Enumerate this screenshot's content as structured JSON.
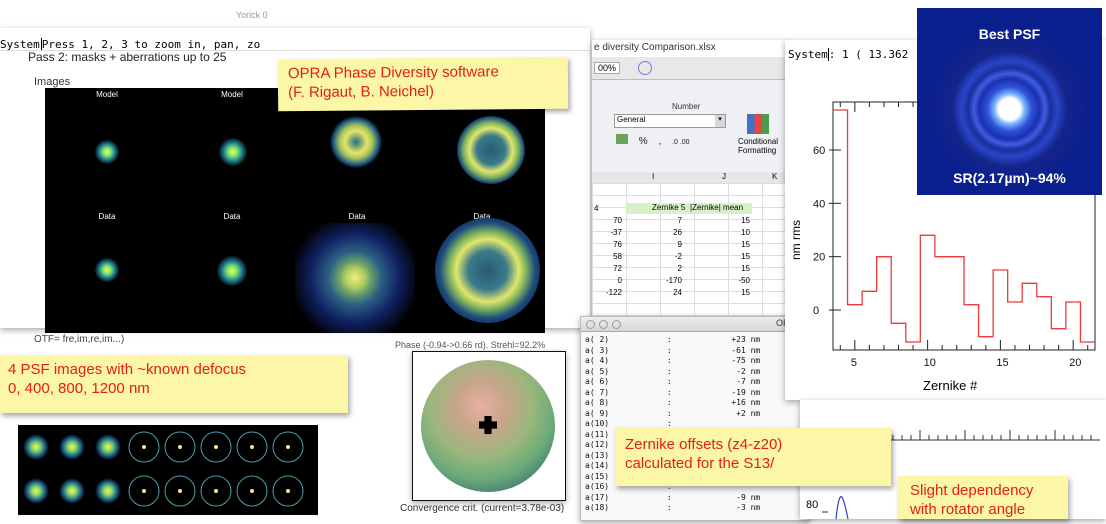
{
  "yorick_window": {
    "title": "Yorick 0",
    "command_prefix": "System",
    "command_text": "Press 1, 2, 3 to zoom in, pan, zo",
    "subtitle": "Pass 2: masks + aberrations up to 25",
    "images_label": "Images",
    "row_labels_model": [
      "Model",
      "Model"
    ],
    "row_labels_data": [
      "Data",
      "Data",
      "Data",
      "Data"
    ],
    "otf_label": "OTF= fre,im,re,im...)",
    "phase_label": "Phase (-0.94->0.66 rd). Strehl=92.2%",
    "convergence_label": "Convergence crit. (current=3.78e-03)"
  },
  "excel_window": {
    "title": "e diversity Comparison.xlsx",
    "zoom": "00%",
    "ribbon_group": "Number",
    "number_format": "General",
    "conditional_formatting": [
      "Conditional",
      "Formatting"
    ],
    "column_letters": [
      "I",
      "J",
      "K"
    ],
    "col_headers": [
      "Zernike 5",
      "|Zernike| mean"
    ],
    "rows": [
      [
        "70",
        "7",
        "15"
      ],
      [
        "-37",
        "26",
        "10"
      ],
      [
        "76",
        "9",
        "15"
      ],
      [
        "58",
        "-2",
        "15"
      ],
      [
        "72",
        "2",
        "15"
      ],
      [
        "0",
        "-170",
        "-50"
      ],
      [
        "-122",
        "24",
        "15"
      ]
    ],
    "first_col_marker": "4"
  },
  "opra_window": {
    "title": "OPRA",
    "rows": [
      {
        "label": "a( 2)",
        "value": "+23 nm"
      },
      {
        "label": "a( 3)",
        "value": "-61 nm"
      },
      {
        "label": "a( 4)",
        "value": "-75 nm"
      },
      {
        "label": "a( 5)",
        "value": "-2 nm"
      },
      {
        "label": "a( 6)",
        "value": "-7 nm"
      },
      {
        "label": "a( 7)",
        "value": "-19 nm"
      },
      {
        "label": "a( 8)",
        "value": "+16 nm"
      },
      {
        "label": "a( 9)",
        "value": "+2 nm"
      },
      {
        "label": "a(10)",
        "value": ""
      },
      {
        "label": "a(11)",
        "value": ""
      },
      {
        "label": "a(12)",
        "value": ""
      },
      {
        "label": "a(13)",
        "value": ""
      },
      {
        "label": "a(14)",
        "value": ""
      },
      {
        "label": "a(15)",
        "value": ""
      },
      {
        "label": "a(16)",
        "value": ""
      },
      {
        "label": "a(17)",
        "value": "-9 nm"
      },
      {
        "label": "a(18)",
        "value": "-3 nm"
      }
    ]
  },
  "plot_window": {
    "command_prefix": "System",
    "command_text": ": 1 (   13.362"
  },
  "chart_data": {
    "type": "line",
    "x": [
      4,
      5,
      6,
      7,
      8,
      9,
      10,
      11,
      12,
      13,
      14,
      15,
      16,
      17,
      18,
      19,
      20,
      21
    ],
    "values": [
      75,
      2,
      7,
      20,
      -5,
      -12,
      28,
      20,
      20,
      2,
      -10,
      15,
      3,
      10,
      5,
      -7,
      3,
      -12
    ],
    "xlabel": "Zernike #",
    "ylabel": "nm rms",
    "xlim": [
      3.5,
      21.5
    ],
    "ylim": [
      -15,
      78
    ],
    "x_ticks": [
      "5",
      "10",
      "15",
      "20"
    ],
    "y_ticks": [
      "0",
      "20",
      "40",
      "60"
    ],
    "line_color": "#ee3a3a"
  },
  "best_psf": {
    "title": "Best PSF",
    "strehl": "SR(2.17µm)~94%"
  },
  "notes": {
    "opra": [
      "OPRA Phase Diversity software",
      "(F. Rigaut, B. Neichel)"
    ],
    "psf": [
      "4 PSF images with ~known defocus",
      "0, 400, 800, 1200 nm"
    ],
    "zernike": [
      "Zernike offsets (z4-z20)",
      "calculated for the S13/"
    ],
    "rotator": [
      "Slight dependency",
      "with rotator angle"
    ]
  },
  "small_plot": {
    "y_tick": "80"
  },
  "colors": {
    "note_bg": "#fbf7a6",
    "note_text": "#e41f12",
    "psf_panel_bg": "#0a1f8e",
    "excel_header_green": "#d6f1c6"
  }
}
